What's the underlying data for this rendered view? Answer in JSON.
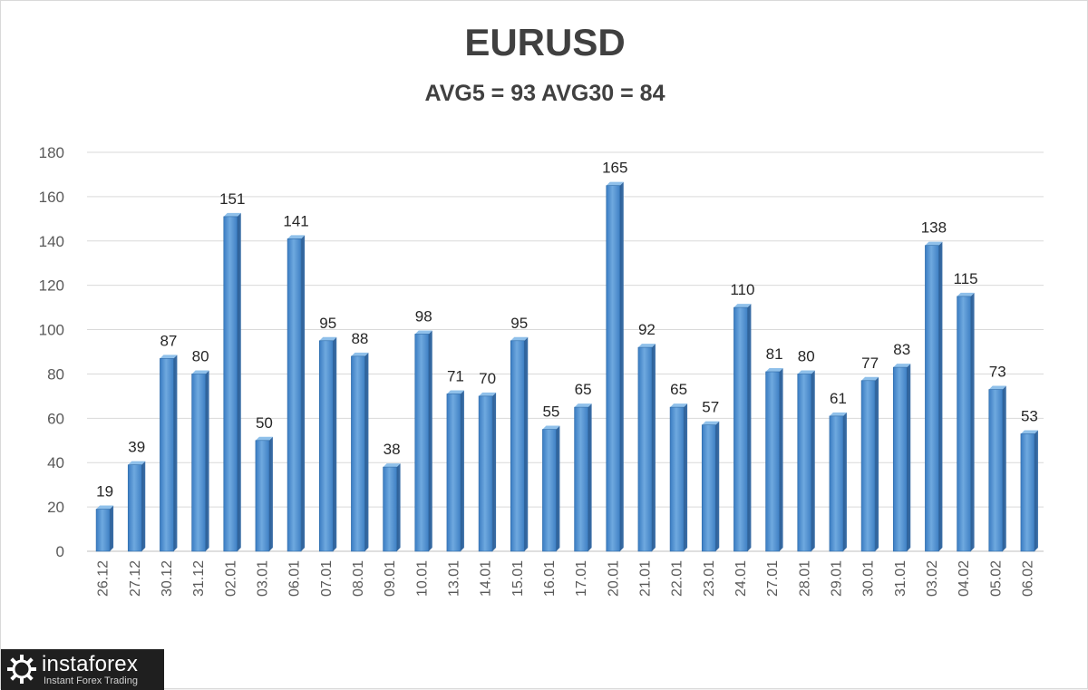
{
  "chart_data": {
    "type": "bar",
    "title": "EURUSD",
    "subtitle": "AVG5 = 93 AVG30 = 84",
    "xlabel": "",
    "ylabel": "",
    "ylim": [
      0,
      180
    ],
    "yticks": [
      0,
      20,
      40,
      60,
      80,
      100,
      120,
      140,
      160,
      180
    ],
    "grid": true,
    "legend": "none",
    "bar_color": "#5b9bd5",
    "categories": [
      "26.12",
      "27.12",
      "30.12",
      "31.12",
      "02.01",
      "03.01",
      "06.01",
      "07.01",
      "08.01",
      "09.01",
      "10.01",
      "13.01",
      "14.01",
      "15.01",
      "16.01",
      "17.01",
      "20.01",
      "21.01",
      "22.01",
      "23.01",
      "24.01",
      "27.01",
      "28.01",
      "29.01",
      "30.01",
      "31.01",
      "03.02",
      "04.02",
      "05.02",
      "06.02"
    ],
    "values": [
      19,
      39,
      87,
      80,
      151,
      50,
      141,
      95,
      88,
      38,
      98,
      71,
      70,
      95,
      55,
      65,
      165,
      92,
      65,
      57,
      110,
      81,
      80,
      61,
      77,
      83,
      138,
      115,
      73,
      53
    ]
  },
  "branding": {
    "name": "instaforex",
    "tagline": "Instant Forex Trading",
    "icon": "gear-logo-icon"
  }
}
